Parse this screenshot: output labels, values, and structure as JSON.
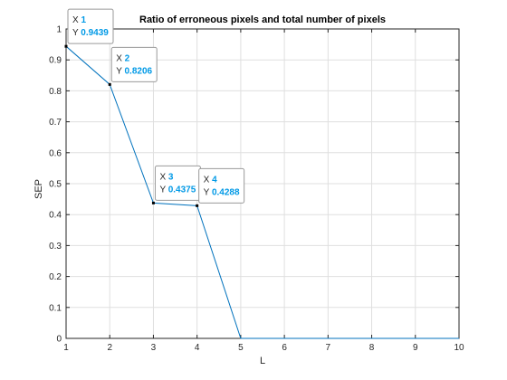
{
  "chart_data": {
    "type": "line",
    "title": "Ratio of erroneous pixels and total number of pixels",
    "xlabel": "L",
    "ylabel": "SEP",
    "xlim": [
      1,
      10
    ],
    "ylim": [
      0,
      1
    ],
    "xticks": [
      "1",
      "2",
      "3",
      "4",
      "5",
      "6",
      "7",
      "8",
      "9",
      "10"
    ],
    "yticks": [
      "0",
      "0.1",
      "0.2",
      "0.3",
      "0.4",
      "0.5",
      "0.6",
      "0.7",
      "0.8",
      "0.9",
      "1"
    ],
    "grid": true,
    "series": [
      {
        "x": [
          1,
          2,
          3,
          4,
          5,
          6,
          7,
          8,
          9,
          10
        ],
        "values": [
          0.9439,
          0.8206,
          0.4375,
          0.4288,
          0,
          0,
          0,
          0,
          0,
          0
        ]
      }
    ],
    "datatips": [
      {
        "x_label": "X",
        "x_value": "1",
        "y_label": "Y",
        "y_value": "0.9439"
      },
      {
        "x_label": "X",
        "x_value": "2",
        "y_label": "Y",
        "y_value": "0.8206"
      },
      {
        "x_label": "X",
        "x_value": "3",
        "y_label": "Y",
        "y_value": "0.4375"
      },
      {
        "x_label": "X",
        "x_value": "4",
        "y_label": "Y",
        "y_value": "0.4288"
      }
    ],
    "colors": {
      "line": "#0072BD",
      "tip_value": "#0099E6",
      "grid": "#DFDFDF",
      "axis": "#262626"
    }
  }
}
